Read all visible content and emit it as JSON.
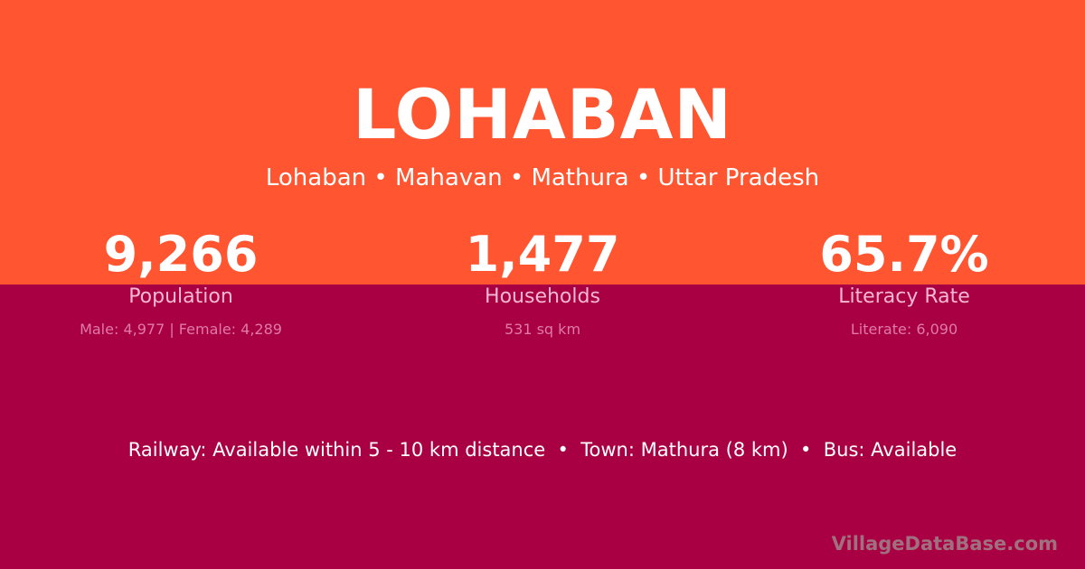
{
  "title": "LOHABAN",
  "subtitle": "Lohaban • Mahavan • Mathura • Uttar Pradesh",
  "stats": [
    {
      "value": "9,266",
      "label": "Population",
      "detail": "Male: 4,977 | Female: 4,289"
    },
    {
      "value": "1,477",
      "label": "Households",
      "detail": "531 sq km"
    },
    {
      "value": "65.7%",
      "label": "Literacy Rate",
      "detail": "Literate: 6,090"
    }
  ],
  "info": "Railway: Available within 5 - 10 km distance  •  Town: Mathura (8 km)  •  Bus: Available",
  "brand": "VillageDataBase.com",
  "colors": {
    "top": "#ff5530",
    "bottom": "#a80042"
  }
}
